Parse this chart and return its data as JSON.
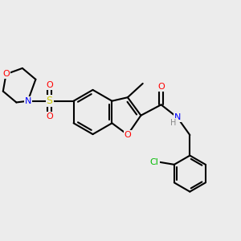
{
  "background_color": "#ececec",
  "bond_color": "#000000",
  "atom_colors": {
    "O": "#ff0000",
    "N": "#0000ff",
    "S": "#cccc00",
    "Cl": "#00bb00",
    "H": "#888888",
    "C": "#000000"
  },
  "bond_width": 1.5,
  "figsize": [
    3.0,
    3.0
  ],
  "dpi": 100
}
